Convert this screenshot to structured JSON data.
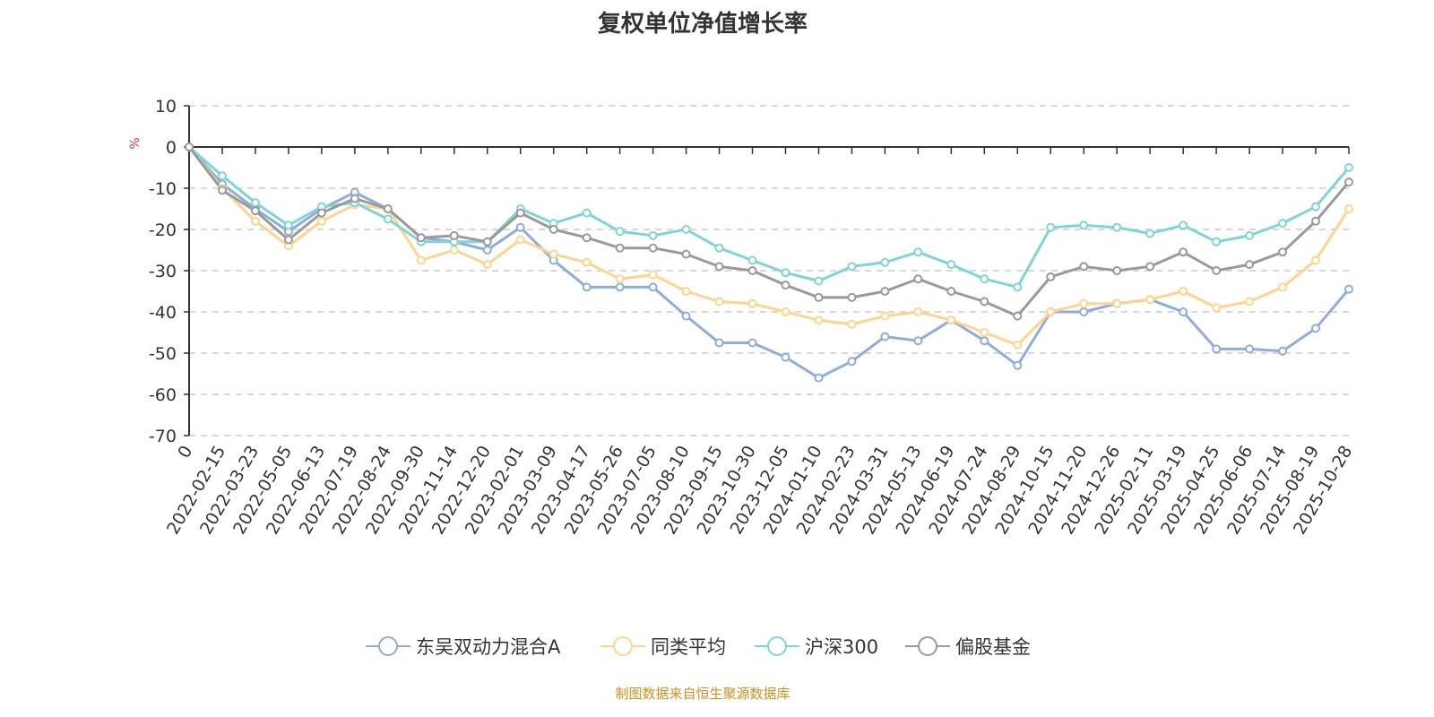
{
  "chart_data": {
    "type": "line",
    "title": "复权单位净值增长率",
    "ylabel": "%",
    "ylim": [
      -70,
      10
    ],
    "yticks": [
      10,
      0,
      -10,
      -20,
      -30,
      -40,
      -50,
      -60,
      -70
    ],
    "grid": true,
    "legend_position": "bottom",
    "x": [
      "0",
      "2022-02-15",
      "2022-03-23",
      "2022-05-05",
      "2022-06-13",
      "2022-07-19",
      "2022-08-24",
      "2022-09-30",
      "2022-11-14",
      "2022-12-20",
      "2023-02-01",
      "2023-03-09",
      "2023-04-17",
      "2023-05-26",
      "2023-07-05",
      "2023-08-10",
      "2023-09-15",
      "2023-10-30",
      "2023-12-05",
      "2024-01-10",
      "2024-02-23",
      "2024-03-31",
      "2024-05-13",
      "2024-06-19",
      "2024-07-24",
      "2024-08-29",
      "2024-10-15",
      "2024-11-20",
      "2024-12-26",
      "2025-02-11",
      "2025-03-19",
      "2025-04-25",
      "2025-06-06",
      "2025-07-14",
      "2025-08-19",
      "2025-10-28"
    ],
    "series": [
      {
        "name": "东吴双动力混合A",
        "color": "#8eadda",
        "values": [
          0,
          -9,
          -15,
          -20.5,
          -15,
          -11,
          -15,
          -22,
          -23,
          -25,
          -19.5,
          -27.5,
          -34,
          -34,
          -34,
          -41,
          -47.5,
          -47.5,
          -51,
          -56,
          -52,
          -46,
          -47,
          -42,
          -47,
          -53,
          -40,
          -40,
          -38,
          -37,
          -40,
          -49,
          -49,
          -49.5,
          -44,
          -34.5
        ]
      },
      {
        "name": "同类平均",
        "color": "#fdd58e",
        "values": [
          0,
          -10,
          -18,
          -24,
          -18,
          -14,
          -15,
          -27.5,
          -25,
          -28.5,
          -22.5,
          -26,
          -28,
          -32,
          -31,
          -35,
          -37.5,
          -38,
          -40,
          -42,
          -43,
          -41,
          -40,
          -42,
          -45,
          -48,
          -40,
          -38,
          -38,
          -37,
          -35,
          -39,
          -37.5,
          -34,
          -27.5,
          -15
        ]
      },
      {
        "name": "沪深300",
        "color": "#7fd5d6",
        "values": [
          0,
          -7,
          -13.5,
          -19,
          -14.5,
          -13.5,
          -17.5,
          -23,
          -23,
          -23,
          -15,
          -18.5,
          -16,
          -20.5,
          -21.5,
          -20,
          -24.5,
          -27.5,
          -30.5,
          -32.5,
          -29,
          -28,
          -25.5,
          -28.5,
          -32,
          -34,
          -19.5,
          -19,
          -19.5,
          -21,
          -19,
          -23,
          -21.5,
          -18.5,
          -14.5,
          -5
        ]
      },
      {
        "name": "偏股基金",
        "color": "#9a9a9a",
        "values": [
          0,
          -10.5,
          -15.5,
          -22.5,
          -16,
          -12.5,
          -15,
          -22,
          -21.5,
          -23,
          -16,
          -20,
          -22,
          -24.5,
          -24.5,
          -26,
          -29,
          -30,
          -33.5,
          -36.5,
          -36.5,
          -35,
          -32,
          -35,
          -37.5,
          -41,
          -31.5,
          -29,
          -30,
          -29,
          -25.5,
          -30,
          -28.5,
          -25.5,
          -18,
          -8.5
        ]
      }
    ]
  },
  "footer": "制图数据来自恒生聚源数据库"
}
